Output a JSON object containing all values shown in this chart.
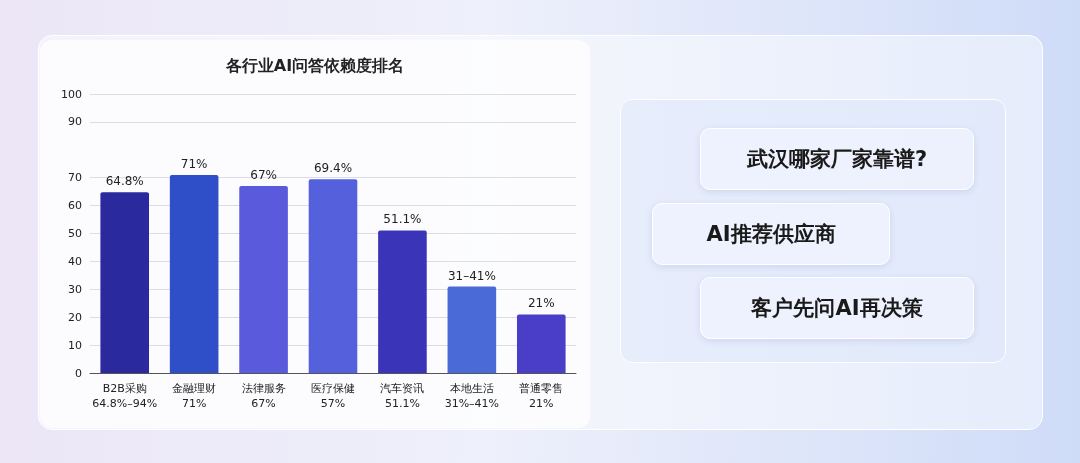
{
  "chart_data": {
    "type": "bar",
    "title": "各行业AI问答依赖度排名",
    "categories": [
      "B2B采购\n64.8%–94%",
      "金融理财\n71%",
      "法律服务\n67%",
      "医疗保健\n57%",
      "汽车资讯\n51.1%",
      "本地生活\n31%–41%",
      "普通零售\n21%"
    ],
    "values": [
      64.8,
      71,
      67,
      69.4,
      51.1,
      31,
      21
    ],
    "value_labels": [
      "64.8%",
      "71%",
      "67%",
      "69.4%",
      "51.1%",
      "31–41%",
      "21%"
    ],
    "colors": [
      "#2a2a9e",
      "#2f4fc8",
      "#5a5adc",
      "#5560dc",
      "#3a34b8",
      "#4a6ad8",
      "#4a3ec8"
    ],
    "ylim": [
      0,
      100
    ],
    "yticks": [
      0,
      10,
      20,
      30,
      40,
      50,
      60,
      70,
      90,
      100
    ],
    "grid": "y",
    "annotations": [
      "武汉哪家厂家靠谱?",
      "AI推荐供应商",
      "客户先问AI再决策"
    ]
  }
}
